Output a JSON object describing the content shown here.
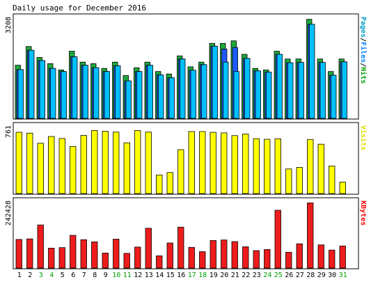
{
  "chart_data": {
    "type": "bar",
    "title": "Daily usage for December 2016",
    "days": [
      "1",
      "2",
      "3",
      "4",
      "5",
      "6",
      "7",
      "8",
      "9",
      "10",
      "11",
      "12",
      "13",
      "14",
      "15",
      "16",
      "17",
      "18",
      "19",
      "20",
      "21",
      "22",
      "23",
      "24",
      "25",
      "26",
      "27",
      "28",
      "29",
      "30",
      "31"
    ],
    "weekend_days": [
      "3",
      "4",
      "10",
      "11",
      "17",
      "18",
      "24",
      "25",
      "31"
    ],
    "panels": [
      {
        "name": "hits-files-pages",
        "ymax_label": "3208",
        "ymax": 3208,
        "legend": [
          "Pages",
          "/",
          "Files",
          "/",
          "Hits"
        ],
        "legend_colors": [
          "#00a0c8",
          "#000000",
          "#0080ff",
          "#000000",
          "#00a000"
        ],
        "series": [
          {
            "name": "Hits",
            "color": "#1ea83c",
            "values": [
              1700,
              2300,
              1950,
              1750,
              1550,
              2150,
              1800,
              1750,
              1600,
              1800,
              1370,
              1620,
              1800,
              1500,
              1420,
              2000,
              1650,
              1800,
              2400,
              2400,
              2480,
              2050,
              1600,
              1550,
              2150,
              1900,
              1900,
              3170,
              1900,
              1500,
              1900
            ]
          },
          {
            "name": "Files",
            "color": "#1e5aff",
            "values": [
              1560,
              2180,
              1850,
              1600,
              1500,
              1970,
              1700,
              1620,
              1500,
              1680,
              1200,
              1500,
              1700,
              1390,
              1300,
              1900,
              1540,
              1720,
              2310,
              2220,
              2270,
              1920,
              1520,
              1480,
              2050,
              1780,
              1790,
              3010,
              1790,
              1380,
              1810
            ]
          },
          {
            "name": "Pages",
            "color": "#00c0ff",
            "values": [
              1560,
              2180,
              1850,
              1600,
              1500,
              1970,
              1700,
              1620,
              1500,
              1680,
              1200,
              1500,
              1700,
              1390,
              1300,
              1900,
              1540,
              1720,
              2310,
              1800,
              1500,
              1920,
              1520,
              1480,
              2050,
              1780,
              1790,
              3010,
              1790,
              1380,
              1810
            ]
          }
        ]
      },
      {
        "name": "visits",
        "ymax_label": "761",
        "ymax": 761,
        "legend": [
          "Visits"
        ],
        "legend_colors": [
          "#e0e000"
        ],
        "series": [
          {
            "name": "Visits",
            "color": "#ffff00",
            "values": [
              698,
              688,
              573,
              650,
              627,
              536,
              662,
              718,
              709,
              700,
              578,
              718,
              700,
              212,
              240,
              500,
              706,
              706,
              697,
              691,
              660,
              677,
              625,
              618,
              624,
              280,
              298,
              616,
              562,
              314,
              130
            ]
          }
        ]
      },
      {
        "name": "kbytes",
        "ymax_label": "242428",
        "ymax": 242428,
        "legend": [
          "KBytes"
        ],
        "legend_colors": [
          "#ff0000"
        ],
        "series": [
          {
            "name": "KBytes",
            "color": "#ee1c1c",
            "values": [
              105000,
              107000,
              158000,
              73000,
              75000,
              120000,
              104000,
              96000,
              55000,
              106000,
              54000,
              77000,
              146000,
              45000,
              92000,
              150000,
              76000,
              60000,
              101000,
              103000,
              97000,
              78000,
              64000,
              68000,
              212000,
              58000,
              89000,
              239000,
              85000,
              66000,
              81000
            ]
          }
        ]
      }
    ]
  }
}
